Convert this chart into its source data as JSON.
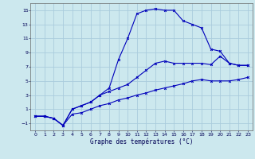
{
  "title": "Graphe des températures (°C)",
  "bg_color": "#cce8ee",
  "grid_color": "#aaccdd",
  "line_color": "#0000bb",
  "xlim": [
    -0.5,
    23.5
  ],
  "ylim": [
    -2,
    16
  ],
  "xticks": [
    0,
    1,
    2,
    3,
    4,
    5,
    6,
    7,
    8,
    9,
    10,
    11,
    12,
    13,
    14,
    15,
    16,
    17,
    18,
    19,
    20,
    21,
    22,
    23
  ],
  "yticks": [
    -1,
    1,
    3,
    5,
    7,
    9,
    11,
    13,
    15
  ],
  "line_bottom_x": [
    0,
    1,
    2,
    3,
    4,
    5,
    6,
    7,
    8,
    9,
    10,
    11,
    12,
    13,
    14,
    15,
    16,
    17,
    18,
    19,
    20,
    21,
    22,
    23
  ],
  "line_bottom_y": [
    0.0,
    0.0,
    -0.3,
    -1.3,
    0.3,
    0.5,
    1.0,
    1.5,
    1.8,
    2.3,
    2.6,
    3.0,
    3.3,
    3.7,
    4.0,
    4.3,
    4.6,
    5.0,
    5.2,
    5.0,
    5.0,
    5.0,
    5.2,
    5.5
  ],
  "line_mid_x": [
    0,
    1,
    2,
    3,
    4,
    5,
    6,
    7,
    8,
    9,
    10,
    11,
    12,
    13,
    14,
    15,
    16,
    17,
    18,
    19,
    20,
    21,
    22,
    23
  ],
  "line_mid_y": [
    0.0,
    0.0,
    -0.3,
    -1.3,
    1.0,
    1.5,
    2.0,
    3.0,
    3.5,
    4.0,
    4.5,
    5.5,
    6.5,
    7.5,
    7.8,
    7.5,
    7.5,
    7.5,
    7.5,
    7.3,
    8.5,
    7.5,
    7.2,
    7.2
  ],
  "line_top_x": [
    0,
    1,
    2,
    3,
    4,
    5,
    6,
    7,
    8,
    9,
    10,
    11,
    12,
    13,
    14,
    15,
    16,
    17,
    18,
    19,
    20,
    21,
    22,
    23
  ],
  "line_top_y": [
    0.0,
    0.0,
    -0.3,
    -1.3,
    1.0,
    1.5,
    2.0,
    3.0,
    4.0,
    8.0,
    11.0,
    14.5,
    15.0,
    15.2,
    15.0,
    15.0,
    13.5,
    13.0,
    12.5,
    9.5,
    9.2,
    7.5,
    7.2,
    7.2
  ]
}
